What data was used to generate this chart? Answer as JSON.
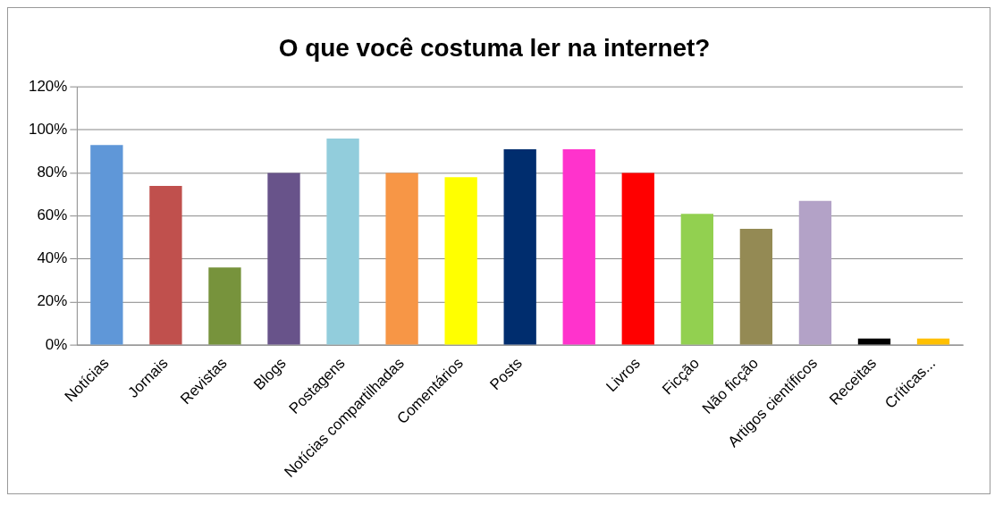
{
  "chart_data": {
    "type": "bar",
    "title": "O que você costuma ler na internet?",
    "categories": [
      "Notícias",
      "Jornais",
      "Revistas",
      "Blogs",
      "Postagens",
      "Notícias compartilhadas",
      "Comentários",
      "Posts",
      null,
      "Livros",
      "Ficção",
      "Não ficção",
      "Artigos científicos",
      "Receitas",
      "Críticas..."
    ],
    "values": [
      93,
      74,
      36,
      80,
      96,
      80,
      78,
      91,
      91,
      80,
      61,
      54,
      67,
      3,
      3
    ],
    "colors": [
      "#5f97d8",
      "#c0504d",
      "#77933c",
      "#68538a",
      "#92cddc",
      "#f79646",
      "#ffff00",
      "#002d6e",
      "#ff33cc",
      "#ff0000",
      "#92d050",
      "#948a54",
      "#b3a2c7",
      "#000000",
      "#ffc000"
    ],
    "ylim": [
      0,
      120
    ],
    "yticks": [
      {
        "value": 0,
        "label": "0%"
      },
      {
        "value": 20,
        "label": "20%"
      },
      {
        "value": 40,
        "label": "40%"
      },
      {
        "value": 60,
        "label": "60%"
      },
      {
        "value": 80,
        "label": "80%"
      },
      {
        "value": 100,
        "label": "100%"
      },
      {
        "value": 120,
        "label": "120%"
      }
    ],
    "grid": "y",
    "legend": false
  }
}
